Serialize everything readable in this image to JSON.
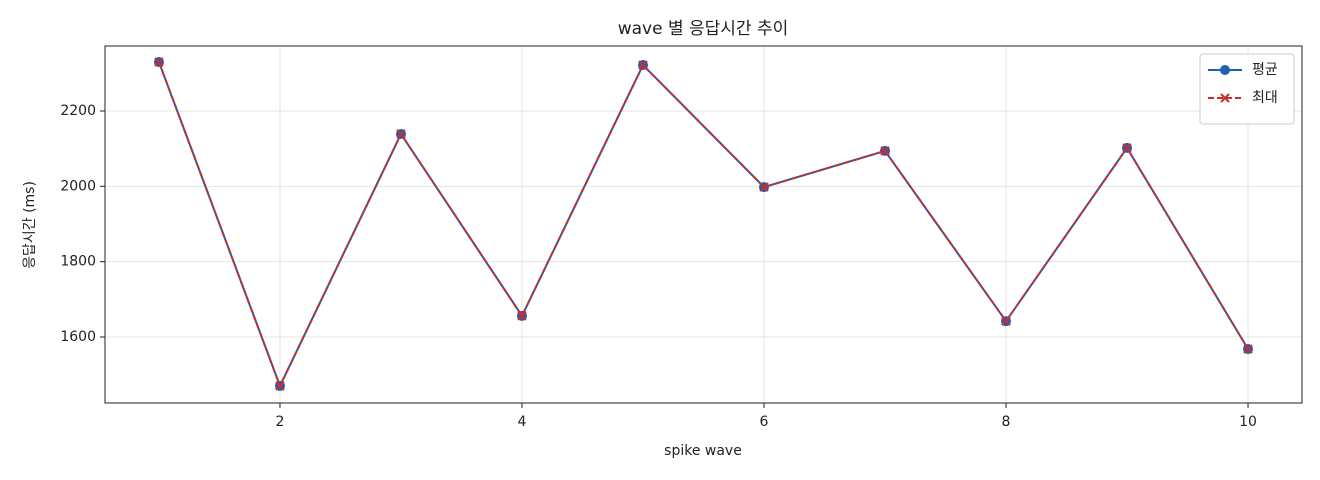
{
  "chart_data": {
    "type": "line",
    "title": "wave 별 응답시간 추이",
    "x_label": "spike wave",
    "y_label": "응답시간 (ms)",
    "x": [
      1,
      2,
      3,
      4,
      5,
      6,
      7,
      8,
      9,
      10
    ],
    "series": [
      {
        "name": "평균",
        "color": "#1f5fb4",
        "marker": "o",
        "linestyle": "solid",
        "values": [
          2330,
          1470,
          2139,
          1656,
          2322,
          1998,
          2094,
          1642,
          2102,
          1568
        ]
      },
      {
        "name": "최대",
        "color": "#c62f2f",
        "marker": "x",
        "linestyle": "dashed",
        "values": [
          2330,
          1470,
          2139,
          1656,
          2322,
          1998,
          2094,
          1642,
          2102,
          1568
        ]
      }
    ],
    "xlim": [
      0.554,
      10.446
    ],
    "ylim": [
      1424.7,
      2372.6
    ],
    "xticks": [
      2,
      4,
      6,
      8,
      10
    ],
    "yticks": [
      1600,
      1800,
      2000,
      2200
    ],
    "grid": true,
    "legend": "upper right"
  }
}
